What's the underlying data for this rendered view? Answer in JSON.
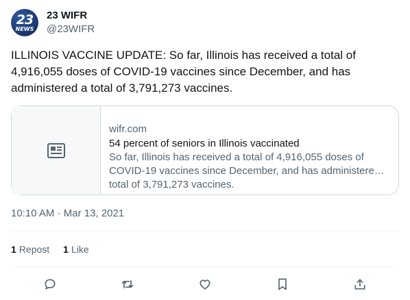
{
  "account": {
    "avatar_number": "23",
    "avatar_word": "NEWS",
    "display_name": "23 WIFR",
    "handle": "@23WIFR"
  },
  "tweet": {
    "text": "ILLINOIS VACCINE UPDATE: So far, Illinois has received a total of 4,916,055 doses of COVID-19 vaccines since December, and has administered a total of 3,791,273 vaccines."
  },
  "card": {
    "domain": "wifr.com",
    "title": "54 percent of seniors in Illinois vaccinated",
    "description": "So far, Illinois has received a total of 4,916,055 doses of COVID-19 vaccines since December, and has administered a total of 3,791,273 vaccines.",
    "thumb_icon": "article-icon"
  },
  "meta": {
    "time": "10:10 AM",
    "separator": "·",
    "date": "Mar 13, 2021"
  },
  "stats": {
    "reposts_count": "1",
    "reposts_label": "Repost",
    "likes_count": "1",
    "likes_label": "Like"
  },
  "actions": [
    "reply-icon",
    "repost-icon",
    "like-icon",
    "bookmark-icon",
    "share-icon"
  ],
  "colors": {
    "text": "#0f1419",
    "secondary": "#536471",
    "border": "#cfd9de"
  }
}
